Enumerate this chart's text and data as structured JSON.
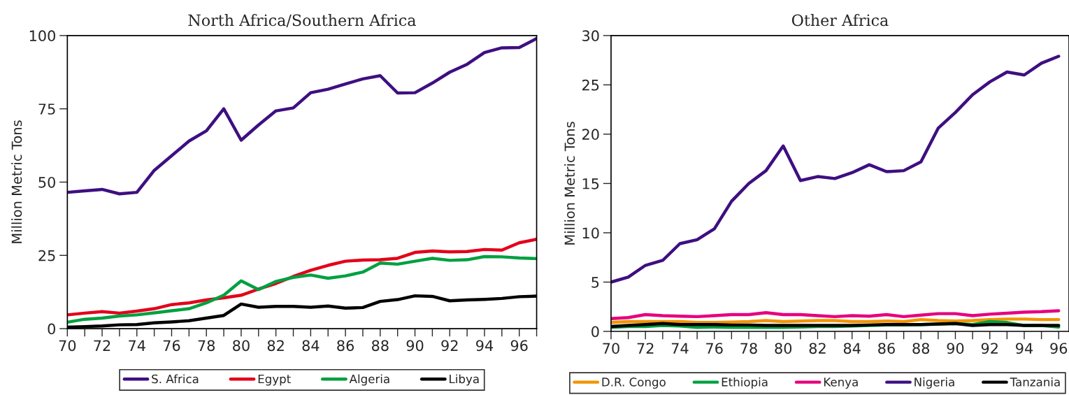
{
  "chart_data": [
    {
      "type": "line",
      "title": "North Africa/Southern Africa",
      "ylabel": "Million Metric Tons",
      "x": [
        70,
        71,
        72,
        73,
        74,
        75,
        76,
        77,
        78,
        79,
        80,
        81,
        82,
        83,
        84,
        85,
        86,
        87,
        88,
        89,
        90,
        91,
        92,
        93,
        94,
        95,
        96,
        97
      ],
      "series": [
        {
          "name": "S. Africa",
          "color": "#3d0f80",
          "values": [
            46.5,
            47,
            47.5,
            46,
            46.5,
            54,
            59,
            64,
            67.5,
            75,
            64.3,
            69.5,
            74.3,
            75.3,
            80.5,
            81.7,
            83.5,
            85.2,
            86.3,
            80.4,
            80.5,
            83.8,
            87.5,
            90.2,
            94.2,
            95.8,
            95.9,
            99
          ]
        },
        {
          "name": "Egypt",
          "color": "#e2001a",
          "values": [
            4.7,
            5.3,
            5.8,
            5.3,
            6,
            6.8,
            8.2,
            8.8,
            9.8,
            10.5,
            11.4,
            13.5,
            15.4,
            17.8,
            19.9,
            21.6,
            23,
            23.4,
            23.5,
            24,
            26,
            26.5,
            26.2,
            26.3,
            27,
            26.8,
            29.3,
            30.5
          ]
        },
        {
          "name": "Algeria",
          "color": "#00a040",
          "values": [
            2.2,
            3.2,
            3.6,
            4.3,
            4.7,
            5.4,
            6.1,
            6.8,
            8.8,
            11.4,
            16.3,
            13.3,
            16.1,
            17.5,
            18.3,
            17.2,
            18,
            19.3,
            22.4,
            22,
            23,
            24,
            23.3,
            23.5,
            24.6,
            24.5,
            24.1,
            23.9
          ]
        },
        {
          "name": "Libya",
          "color": "#000000",
          "values": [
            0.5,
            0.7,
            0.9,
            1.3,
            1.4,
            2,
            2.3,
            2.7,
            3.6,
            4.5,
            8.4,
            7.3,
            7.6,
            7.6,
            7.3,
            7.7,
            7,
            7.2,
            9.3,
            9.9,
            11.2,
            11,
            9.5,
            9.8,
            10,
            10.3,
            10.9,
            11.1
          ]
        }
      ],
      "xlim": [
        70,
        97
      ],
      "xticks": [
        70,
        {
          "value": 71,
          "label": null
        },
        72,
        {
          "value": 73,
          "label": null
        },
        74,
        {
          "value": 75,
          "label": null
        },
        76,
        {
          "value": 77,
          "label": null
        },
        78,
        {
          "value": 79,
          "label": null
        },
        80,
        {
          "value": 81,
          "label": null
        },
        82,
        {
          "value": 83,
          "label": null
        },
        84,
        {
          "value": 85,
          "label": null
        },
        86,
        {
          "value": 87,
          "label": null
        },
        88,
        {
          "value": 89,
          "label": null
        },
        90,
        {
          "value": 91,
          "label": null
        },
        92,
        {
          "value": 93,
          "label": null
        },
        94,
        {
          "value": 95,
          "label": null
        },
        96,
        {
          "value": 97,
          "label": null
        }
      ],
      "ylim": [
        0,
        100
      ],
      "yticks": [
        0,
        25,
        50,
        75,
        100
      ],
      "grid": false,
      "legend": "bottom",
      "marker": "none",
      "line_style": "solid"
    },
    {
      "type": "line",
      "title": "Other Africa",
      "ylabel": "Million Metric Tons",
      "x": [
        70,
        71,
        72,
        73,
        74,
        75,
        76,
        77,
        78,
        79,
        80,
        81,
        82,
        83,
        84,
        85,
        86,
        87,
        88,
        89,
        90,
        91,
        92,
        93,
        94,
        95,
        96
      ],
      "series": [
        {
          "name": "D.R. Congo",
          "color": "#f29400",
          "values": [
            0.9,
            1.0,
            1.0,
            1.0,
            1.0,
            0.9,
            0.9,
            0.95,
            1.0,
            1.1,
            1.0,
            1.05,
            1.1,
            1.1,
            1.0,
            1.0,
            1.05,
            1.0,
            1.2,
            1.1,
            1.05,
            1.1,
            1.2,
            1.25,
            1.25,
            1.2,
            1.2
          ]
        },
        {
          "name": "Ethiopia",
          "color": "#00a040",
          "values": [
            0.4,
            0.5,
            0.5,
            0.6,
            0.55,
            0.4,
            0.45,
            0.4,
            0.4,
            0.4,
            0.4,
            0.45,
            0.5,
            0.5,
            0.55,
            0.6,
            0.65,
            0.65,
            0.7,
            0.75,
            0.8,
            0.7,
            1.0,
            0.9,
            0.6,
            0.6,
            0.45
          ]
        },
        {
          "name": "Kenya",
          "color": "#e6007e",
          "values": [
            1.3,
            1.4,
            1.7,
            1.6,
            1.55,
            1.5,
            1.6,
            1.7,
            1.7,
            1.9,
            1.7,
            1.7,
            1.6,
            1.5,
            1.6,
            1.55,
            1.7,
            1.5,
            1.65,
            1.8,
            1.8,
            1.6,
            1.75,
            1.85,
            1.95,
            2.0,
            2.1
          ]
        },
        {
          "name": "Nigeria",
          "color": "#3d0f80",
          "values": [
            5.0,
            5.5,
            6.7,
            7.2,
            8.9,
            9.3,
            10.4,
            13.2,
            15.0,
            16.3,
            18.8,
            15.3,
            15.7,
            15.5,
            16.1,
            16.9,
            16.2,
            16.3,
            17.2,
            20.6,
            22.2,
            24.0,
            25.3,
            26.3,
            26.0,
            27.2,
            27.9
          ]
        },
        {
          "name": "Tanzania",
          "color": "#000000",
          "values": [
            0.5,
            0.6,
            0.7,
            0.8,
            0.7,
            0.7,
            0.7,
            0.65,
            0.65,
            0.6,
            0.6,
            0.6,
            0.6,
            0.6,
            0.6,
            0.65,
            0.7,
            0.7,
            0.7,
            0.75,
            0.8,
            0.6,
            0.7,
            0.7,
            0.6,
            0.6,
            0.6
          ]
        }
      ],
      "xlim": [
        70,
        96.6
      ],
      "xticks": [
        70,
        {
          "value": 71,
          "label": null
        },
        72,
        {
          "value": 73,
          "label": null
        },
        74,
        {
          "value": 75,
          "label": null
        },
        76,
        {
          "value": 77,
          "label": null
        },
        78,
        {
          "value": 79,
          "label": null
        },
        80,
        {
          "value": 81,
          "label": null
        },
        82,
        {
          "value": 83,
          "label": null
        },
        84,
        {
          "value": 85,
          "label": null
        },
        86,
        {
          "value": 87,
          "label": null
        },
        88,
        {
          "value": 89,
          "label": null
        },
        90,
        {
          "value": 91,
          "label": null
        },
        92,
        {
          "value": 93,
          "label": null
        },
        94,
        {
          "value": 95,
          "label": null
        },
        96
      ],
      "ylim": [
        0,
        30
      ],
      "yticks": [
        0,
        5,
        10,
        15,
        20,
        25,
        30
      ],
      "grid": false,
      "legend": "bottom",
      "marker": "none",
      "line_style": "solid"
    }
  ]
}
